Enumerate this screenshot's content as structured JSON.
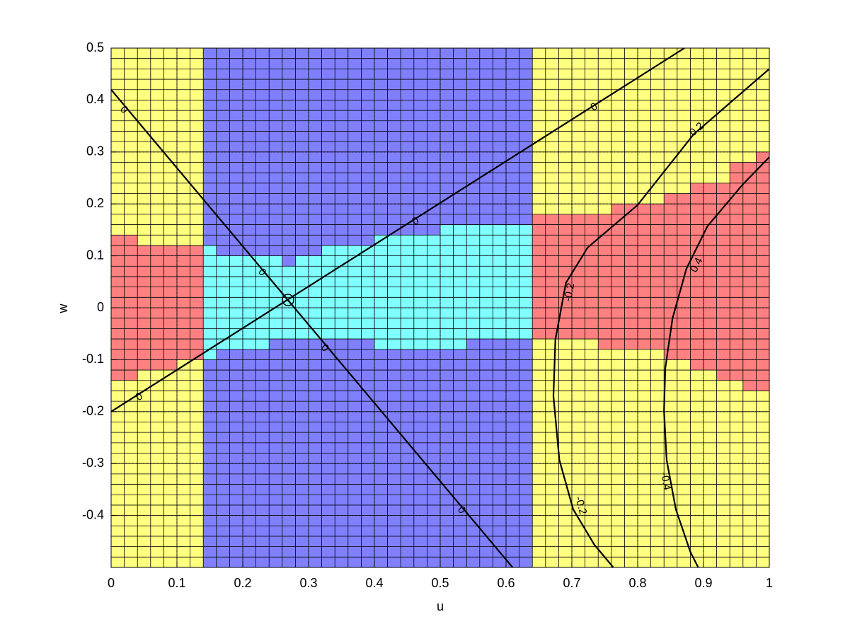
{
  "chart_data": {
    "type": "contour",
    "xlabel": "u",
    "ylabel": "w",
    "xlim": [
      0,
      1
    ],
    "ylim": [
      -0.5,
      0.5
    ],
    "xticks": [
      0,
      0.1,
      0.2,
      0.3,
      0.4,
      0.5,
      0.6,
      0.7,
      0.8,
      0.9,
      1
    ],
    "yticks": [
      -0.4,
      -0.3,
      -0.2,
      -0.1,
      0,
      0.1,
      0.2,
      0.3,
      0.4,
      0.5
    ],
    "grid": true,
    "cell_size": 0.02,
    "background_color": "#ffff80",
    "regions": [
      {
        "color": "#8080ff",
        "u": [
          0.14,
          0.64
        ],
        "w": [
          -0.5,
          0.5
        ]
      },
      {
        "color": "#ff8080",
        "u": [
          0,
          0.04
        ],
        "w": [
          -0.14,
          0.14
        ]
      },
      {
        "color": "#ff8080",
        "u": [
          0.04,
          0.1
        ],
        "w": [
          -0.12,
          0.12
        ]
      },
      {
        "color": "#ff8080",
        "u": [
          0.1,
          0.14
        ],
        "w": [
          -0.1,
          0.12
        ]
      },
      {
        "color": "#80ffff",
        "u": [
          0.14,
          0.16
        ],
        "w": [
          -0.1,
          0.12
        ]
      },
      {
        "color": "#80ffff",
        "u": [
          0.16,
          0.24
        ],
        "w": [
          -0.08,
          0.1
        ]
      },
      {
        "color": "#80ffff",
        "u": [
          0.24,
          0.26
        ],
        "w": [
          -0.06,
          0.1
        ]
      },
      {
        "color": "#80ffff",
        "u": [
          0.26,
          0.28
        ],
        "w": [
          -0.06,
          0.08
        ]
      },
      {
        "color": "#80ffff",
        "u": [
          0.28,
          0.32
        ],
        "w": [
          -0.06,
          0.1
        ]
      },
      {
        "color": "#80ffff",
        "u": [
          0.32,
          0.4
        ],
        "w": [
          -0.06,
          0.12
        ]
      },
      {
        "color": "#80ffff",
        "u": [
          0.4,
          0.5
        ],
        "w": [
          -0.08,
          0.14
        ]
      },
      {
        "color": "#80ffff",
        "u": [
          0.5,
          0.54
        ],
        "w": [
          -0.08,
          0.16
        ]
      },
      {
        "color": "#80ffff",
        "u": [
          0.54,
          0.64
        ],
        "w": [
          -0.06,
          0.16
        ]
      },
      {
        "color": "#ff8080",
        "u": [
          0.64,
          0.74
        ],
        "w": [
          -0.06,
          0.18
        ]
      },
      {
        "color": "#ff8080",
        "u": [
          0.74,
          0.76
        ],
        "w": [
          -0.08,
          0.18
        ]
      },
      {
        "color": "#ff8080",
        "u": [
          0.76,
          0.84
        ],
        "w": [
          -0.08,
          0.2
        ]
      },
      {
        "color": "#ff8080",
        "u": [
          0.84,
          0.88
        ],
        "w": [
          -0.1,
          0.22
        ]
      },
      {
        "color": "#ff8080",
        "u": [
          0.88,
          0.92
        ],
        "w": [
          -0.12,
          0.24
        ]
      },
      {
        "color": "#ff8080",
        "u": [
          0.92,
          0.94
        ],
        "w": [
          -0.14,
          0.24
        ]
      },
      {
        "color": "#ff8080",
        "u": [
          0.94,
          0.96
        ],
        "w": [
          -0.14,
          0.28
        ]
      },
      {
        "color": "#ff8080",
        "u": [
          0.96,
          0.98
        ],
        "w": [
          -0.16,
          0.28
        ]
      },
      {
        "color": "#ff8080",
        "u": [
          0.98,
          1
        ],
        "w": [
          -0.16,
          0.3
        ]
      }
    ],
    "line_color": "#000000",
    "contours": [
      {
        "x": [
          0,
          0.61
        ],
        "y": [
          0.42,
          -0.5
        ]
      },
      {
        "x": [
          0,
          0.871
        ],
        "y": [
          -0.2,
          0.5
        ]
      },
      {
        "x": [
          1,
          0.885,
          0.8,
          0.724,
          0.691,
          0.675,
          0.672,
          0.681,
          0.702,
          0.734,
          0.763
        ],
        "y": [
          0.46,
          0.334,
          0.198,
          0.116,
          0.048,
          -0.061,
          -0.17,
          -0.293,
          -0.388,
          -0.456,
          -0.5
        ]
      },
      {
        "x": [
          1,
          0.96,
          0.906,
          0.874,
          0.853,
          0.842,
          0.84,
          0.844,
          0.858,
          0.88,
          0.892
        ],
        "y": [
          0.29,
          0.238,
          0.157,
          0.075,
          -0.02,
          -0.116,
          -0.198,
          -0.293,
          -0.388,
          -0.47,
          -0.5
        ]
      }
    ],
    "contour_labels": [
      {
        "text": "0",
        "x": 0.019,
        "y": 0.381
      },
      {
        "text": "0",
        "x": 0.229,
        "y": 0.068
      },
      {
        "text": "0",
        "x": 0.324,
        "y": -0.078
      },
      {
        "text": "0",
        "x": 0.532,
        "y": -0.39
      },
      {
        "text": "0",
        "x": 0.043,
        "y": -0.172
      },
      {
        "text": "0",
        "x": 0.463,
        "y": 0.166
      },
      {
        "text": "0",
        "x": 0.734,
        "y": 0.386
      },
      {
        "text": "0.2",
        "x": 0.89,
        "y": 0.343
      },
      {
        "text": "-0.2",
        "x": 0.697,
        "y": 0.03
      },
      {
        "text": "0.4",
        "x": 0.89,
        "y": 0.082
      },
      {
        "text": "-0.4",
        "x": 0.842,
        "y": -0.334
      },
      {
        "text": "-0.2",
        "x": 0.713,
        "y": -0.381
      }
    ]
  }
}
